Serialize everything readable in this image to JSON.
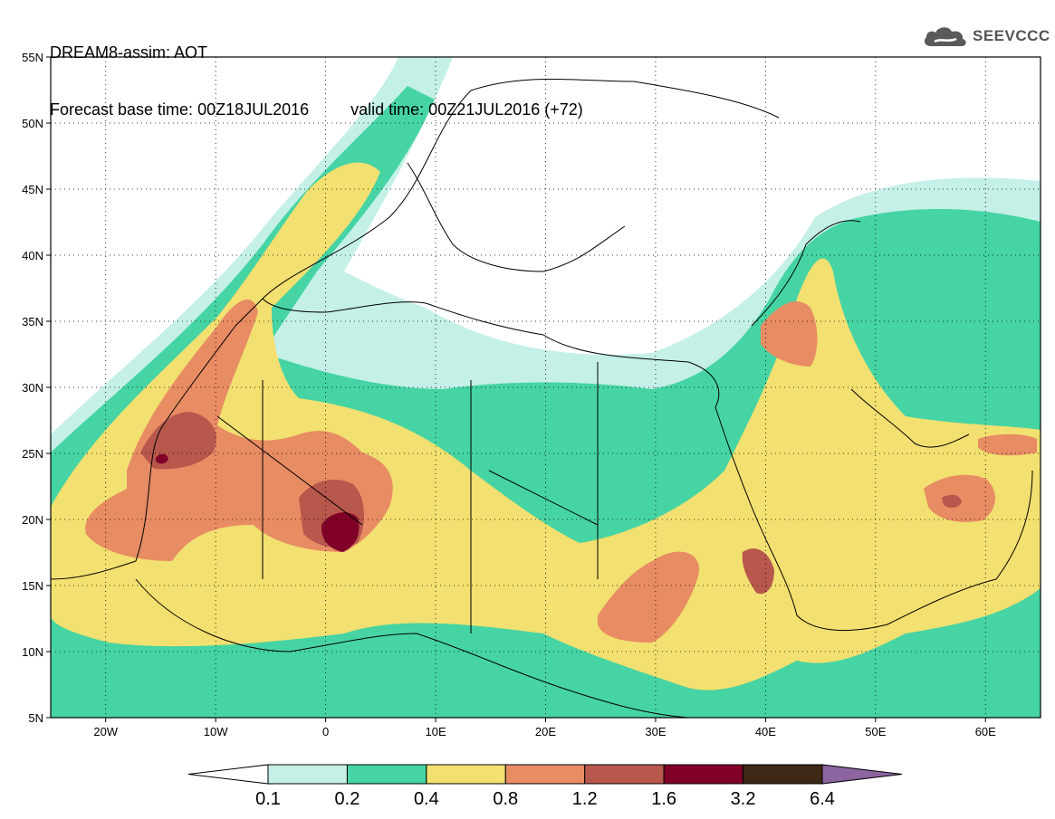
{
  "header": {
    "title_line1": "DREAM8-assim: AOT",
    "base_time": "Forecast base time: 00Z18JUL2016",
    "valid_time": "valid time: 00Z21JUL2016 (+72)"
  },
  "logo": {
    "text": "SEEVCCC",
    "icon": "cloud-icon"
  },
  "map": {
    "lat_ticks": [
      "55N",
      "50N",
      "45N",
      "40N",
      "35N",
      "30N",
      "25N",
      "20N",
      "15N",
      "10N",
      "5N"
    ],
    "lon_ticks": [
      "20W",
      "10W",
      "0",
      "10E",
      "20E",
      "30E",
      "40E",
      "50E",
      "60E"
    ],
    "lon_range": [
      -25,
      65
    ],
    "lat_range": [
      5,
      55
    ]
  },
  "colorbar": {
    "levels": [
      "0.1",
      "0.2",
      "0.4",
      "0.8",
      "1.2",
      "1.6",
      "3.2",
      "6.4"
    ],
    "colors": [
      "#c4f0e8",
      "#46d4a4",
      "#f2e070",
      "#e88c64",
      "#b8584c",
      "#800028",
      "#3c2814",
      "#8c64a0"
    ],
    "under_color": "#ffffff"
  }
}
